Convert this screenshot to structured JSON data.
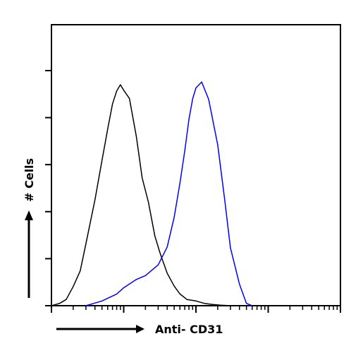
{
  "chart_data": {
    "type": "area",
    "title": "",
    "xlabel": "Anti- CD31",
    "ylabel": "# Cells",
    "x_scale": "log",
    "xlim": [
      1,
      10000
    ],
    "ylim": [
      0,
      100
    ],
    "y_major_ticks": [
      0,
      20,
      40,
      60,
      80,
      100
    ],
    "grid": false,
    "legend": "none",
    "series": [
      {
        "color": "#000000",
        "x": [
          1,
          1.3,
          1.6,
          2,
          2.5,
          3,
          4,
          5,
          6,
          7,
          8,
          9,
          10,
          12,
          15,
          18,
          22,
          27,
          32,
          40,
          50,
          60,
          75,
          100,
          130,
          170,
          220,
          300
        ],
        "y": [
          0,
          1,
          3,
          8,
          15,
          26,
          45,
          62,
          75,
          86,
          91,
          94,
          92,
          88,
          72,
          54,
          44,
          30,
          22,
          14,
          8,
          5,
          3,
          2,
          1,
          0.5,
          0.2,
          0
        ]
      },
      {
        "color": "#0000ff",
        "x": [
          3,
          5,
          8,
          10,
          15,
          20,
          30,
          40,
          50,
          60,
          70,
          80,
          90,
          100,
          120,
          150,
          200,
          250,
          300,
          400,
          500,
          600
        ],
        "y": [
          0,
          2,
          5,
          8,
          11,
          13,
          17,
          25,
          38,
          52,
          66,
          79,
          88,
          93,
          95,
          88,
          68,
          45,
          25,
          9,
          1,
          0
        ]
      }
    ]
  }
}
